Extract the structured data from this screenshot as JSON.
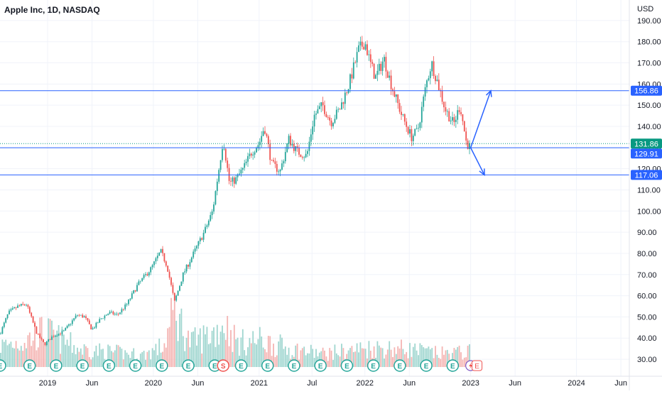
{
  "chart_data": {
    "type": "candlestick",
    "title": "Apple Inc, 1D, NASDAQ",
    "currency": "USD",
    "y_ticks": [
      30,
      40,
      50,
      60,
      70,
      80,
      90,
      100,
      110,
      120,
      130,
      140,
      150,
      160,
      170,
      180,
      190
    ],
    "y_tick_labels": [
      "30.00",
      "40.00",
      "50.00",
      "60.00",
      "70.00",
      "80.00",
      "90.00",
      "100.00",
      "110.00",
      "120.00",
      "130.00",
      "140.00",
      "150.00",
      "160.00",
      "170.00",
      "180.00",
      "190.00"
    ],
    "ylim": [
      26.0,
      197.0
    ],
    "x_ticks": [
      {
        "label": "2019",
        "t": 2019.0
      },
      {
        "label": "Jun",
        "t": 2019.42
      },
      {
        "label": "2020",
        "t": 2020.0
      },
      {
        "label": "Jun",
        "t": 2020.42
      },
      {
        "label": "2021",
        "t": 2021.0
      },
      {
        "label": "Jul",
        "t": 2021.5
      },
      {
        "label": "2022",
        "t": 2022.0
      },
      {
        "label": "Jun",
        "t": 2022.42
      },
      {
        "label": "2023",
        "t": 2023.0
      },
      {
        "label": "Jun",
        "t": 2023.42
      },
      {
        "label": "2024",
        "t": 2024.0
      },
      {
        "label": "Jun",
        "t": 2024.42
      }
    ],
    "xlim": [
      2018.55,
      2024.5
    ],
    "price_path": [
      [
        2018.55,
        42
      ],
      [
        2018.63,
        52
      ],
      [
        2018.72,
        55
      ],
      [
        2018.8,
        56
      ],
      [
        2018.9,
        42
      ],
      [
        2018.97,
        37
      ],
      [
        2019.05,
        41
      ],
      [
        2019.15,
        43
      ],
      [
        2019.28,
        51
      ],
      [
        2019.35,
        50
      ],
      [
        2019.42,
        44
      ],
      [
        2019.5,
        49
      ],
      [
        2019.58,
        52
      ],
      [
        2019.66,
        51
      ],
      [
        2019.75,
        56
      ],
      [
        2019.85,
        65
      ],
      [
        2019.98,
        73
      ],
      [
        2020.07,
        81
      ],
      [
        2020.13,
        74
      ],
      [
        2020.2,
        57
      ],
      [
        2020.28,
        70
      ],
      [
        2020.38,
        80
      ],
      [
        2020.48,
        90
      ],
      [
        2020.56,
        100
      ],
      [
        2020.62,
        120
      ],
      [
        2020.66,
        134
      ],
      [
        2020.72,
        113
      ],
      [
        2020.78,
        115
      ],
      [
        2020.85,
        120
      ],
      [
        2020.93,
        128
      ],
      [
        2021.0,
        132
      ],
      [
        2021.05,
        140
      ],
      [
        2021.12,
        122
      ],
      [
        2021.2,
        119
      ],
      [
        2021.28,
        134
      ],
      [
        2021.36,
        128
      ],
      [
        2021.45,
        126
      ],
      [
        2021.52,
        145
      ],
      [
        2021.6,
        150
      ],
      [
        2021.68,
        142
      ],
      [
        2021.76,
        148
      ],
      [
        2021.85,
        160
      ],
      [
        2021.94,
        176
      ],
      [
        2022.0,
        180
      ],
      [
        2022.05,
        170
      ],
      [
        2022.1,
        163
      ],
      [
        2022.18,
        172
      ],
      [
        2022.26,
        158
      ],
      [
        2022.35,
        145
      ],
      [
        2022.44,
        135
      ],
      [
        2022.5,
        138
      ],
      [
        2022.58,
        160
      ],
      [
        2022.63,
        170
      ],
      [
        2022.68,
        162
      ],
      [
        2022.76,
        148
      ],
      [
        2022.84,
        141
      ],
      [
        2022.9,
        150
      ],
      [
        2022.96,
        132
      ],
      [
        2023.0,
        129.9
      ]
    ],
    "volume_path": [
      [
        2018.55,
        0.35
      ],
      [
        2018.8,
        0.45
      ],
      [
        2018.97,
        0.6
      ],
      [
        2019.3,
        0.3
      ],
      [
        2019.6,
        0.25
      ],
      [
        2019.9,
        0.2
      ],
      [
        2020.1,
        0.35
      ],
      [
        2020.2,
        0.95
      ],
      [
        2020.35,
        0.4
      ],
      [
        2020.6,
        0.6
      ],
      [
        2020.66,
        0.75
      ],
      [
        2020.8,
        0.4
      ],
      [
        2021.0,
        0.45
      ],
      [
        2021.3,
        0.3
      ],
      [
        2021.6,
        0.22
      ],
      [
        2021.95,
        0.3
      ],
      [
        2022.1,
        0.32
      ],
      [
        2022.4,
        0.3
      ],
      [
        2022.7,
        0.22
      ],
      [
        2023.0,
        0.25
      ]
    ],
    "levels": [
      {
        "value": 156.86,
        "label": "156.86"
      },
      {
        "value": 129.91,
        "label": "129.91"
      },
      {
        "value": 117.06,
        "label": "117.06"
      }
    ],
    "last_price": {
      "value": 131.86,
      "label": "131.86"
    },
    "projections": [
      {
        "from": [
          2023.0,
          129.9
        ],
        "to": [
          2023.19,
          156.86
        ]
      },
      {
        "from": [
          2023.0,
          129.9
        ],
        "to": [
          2023.13,
          117.06
        ]
      }
    ],
    "events": [
      {
        "t": 2018.55,
        "type": "E"
      },
      {
        "t": 2018.83,
        "type": "E"
      },
      {
        "t": 2019.08,
        "type": "E"
      },
      {
        "t": 2019.33,
        "type": "E"
      },
      {
        "t": 2019.58,
        "type": "E"
      },
      {
        "t": 2019.83,
        "type": "E"
      },
      {
        "t": 2020.08,
        "type": "E"
      },
      {
        "t": 2020.33,
        "type": "E"
      },
      {
        "t": 2020.58,
        "type": "E"
      },
      {
        "t": 2020.66,
        "type": "S"
      },
      {
        "t": 2020.83,
        "type": "E"
      },
      {
        "t": 2021.08,
        "type": "E"
      },
      {
        "t": 2021.33,
        "type": "E"
      },
      {
        "t": 2021.58,
        "type": "E"
      },
      {
        "t": 2021.83,
        "type": "E"
      },
      {
        "t": 2022.08,
        "type": "E"
      },
      {
        "t": 2022.33,
        "type": "E"
      },
      {
        "t": 2022.58,
        "type": "E"
      },
      {
        "t": 2022.83,
        "type": "E"
      },
      {
        "t": 2023.0,
        "type": "D"
      },
      {
        "t": 2023.06,
        "type": "E-upcoming"
      }
    ],
    "colors": {
      "up": "#26a69a",
      "down": "#ef5350",
      "up_volume": "#9fd6cf",
      "down_volume": "#f4b4b2",
      "level_line": "#2962ff",
      "last_price_tag": "#089981",
      "grid": "#f0f3fa",
      "event_badge": "#26a69a",
      "upcoming_event": "#ef5350"
    }
  }
}
